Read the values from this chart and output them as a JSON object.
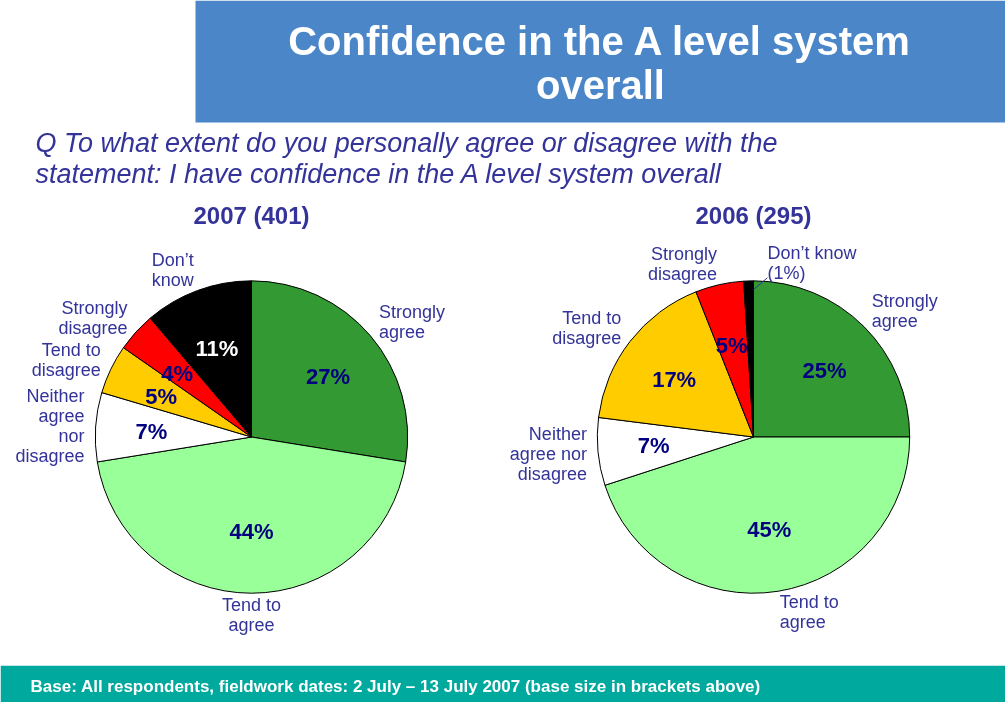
{
  "chart_data": [
    {
      "type": "other",
      "title": "Confidence in the A level system overall",
      "subtitle": "Q  To what extent do you personally agree or disagree with the statement:  I have confidence in the A level system overall",
      "annotations": [
        "Base: All respondents, fieldwork dates: 2 July – 13 July 2007 (base size in brackets above)"
      ]
    },
    {
      "type": "pie",
      "title": "2007 (401)",
      "categories": [
        "Strongly\nagree",
        "Tend to\nagree",
        "Neither\nagree\nnor\ndisagree",
        "Tend to\ndisagree",
        "Strongly\ndisagree",
        "Don’t\nknow"
      ],
      "values": [
        27,
        44,
        7,
        5,
        4,
        11
      ],
      "colors": [
        "#339933",
        "#99ff99",
        "#ffffff",
        "#ffcc00",
        "#ff0000",
        "#000000"
      ],
      "value_labels": [
        "27%",
        "44%",
        "7%",
        "5%",
        "4%",
        "11%"
      ]
    },
    {
      "type": "pie",
      "title": "2006 (295)",
      "categories": [
        "Strongly\nagree",
        "Tend to\nagree",
        "Neither\nagree nor\ndisagree",
        "Tend to\ndisagree",
        "Strongly\ndisagree",
        "Don’t know\n(1%)"
      ],
      "values": [
        25,
        45,
        7,
        17,
        5,
        1
      ],
      "colors": [
        "#339933",
        "#99ff99",
        "#ffffff",
        "#ffcc00",
        "#ff0000",
        "#000000"
      ],
      "value_labels": [
        "25%",
        "45%",
        "7%",
        "17%",
        "5%",
        null
      ]
    }
  ]
}
